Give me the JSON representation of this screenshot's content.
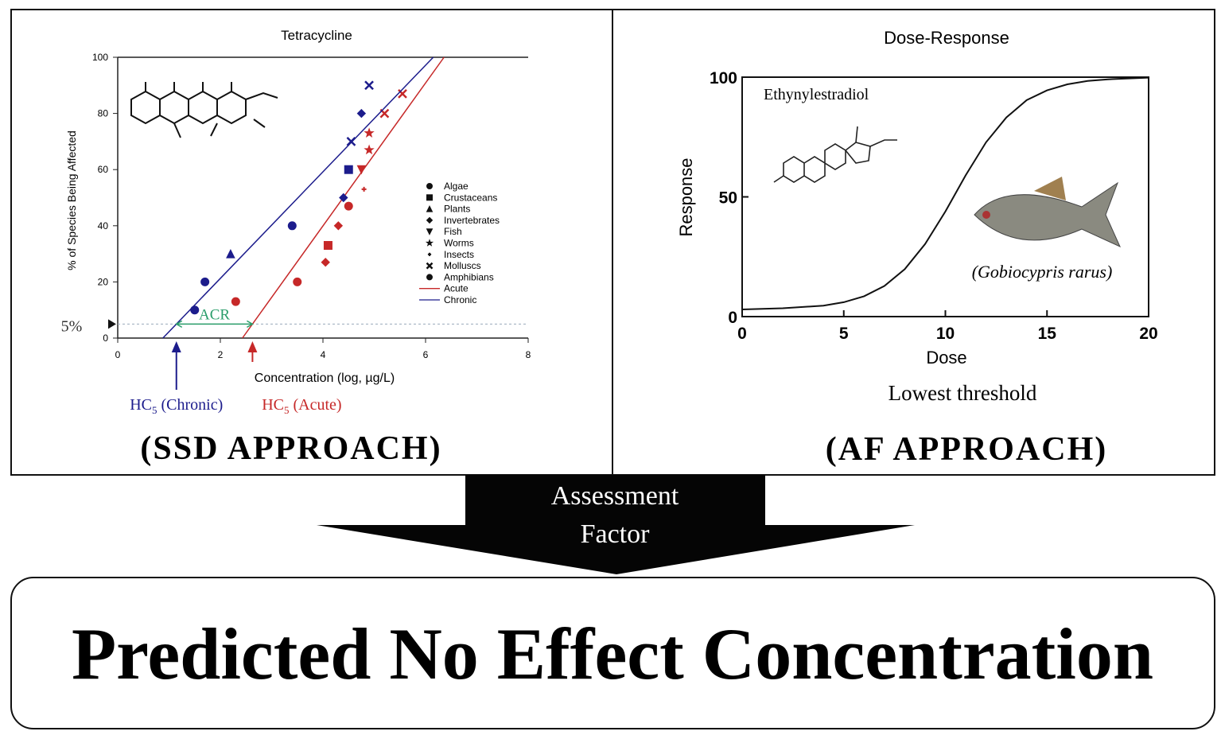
{
  "ssd": {
    "title": "Tetracycline",
    "y_label": "% of Species Being Affected",
    "x_label": "Concentration (log, µg/L)",
    "xlim": [
      0,
      8
    ],
    "xticks": [
      0,
      2,
      4,
      6,
      8
    ],
    "ylim": [
      0,
      100
    ],
    "yticks": [
      0,
      20,
      40,
      60,
      80,
      100
    ],
    "threshold": {
      "label": "5%",
      "value": 5
    },
    "acr_label": "ACR",
    "legend": [
      {
        "name": "Algae",
        "marker": "circle"
      },
      {
        "name": "Crustaceans",
        "marker": "square"
      },
      {
        "name": "Plants",
        "marker": "triangle"
      },
      {
        "name": "Invertebrates",
        "marker": "diamond"
      },
      {
        "name": "Fish",
        "marker": "triangle-down"
      },
      {
        "name": "Worms",
        "marker": "star"
      },
      {
        "name": "Insects",
        "marker": "plus"
      },
      {
        "name": "Molluscs",
        "marker": "x"
      },
      {
        "name": "Amphibians",
        "marker": "circle"
      }
    ],
    "series": [
      {
        "name": "Acute",
        "color": "#c62828",
        "x": [
          2.3,
          3.5,
          4.05,
          4.1,
          4.3,
          4.5,
          4.8,
          4.75,
          4.9,
          4.9,
          5.2,
          5.55
        ],
        "y": [
          13,
          20,
          27,
          33,
          40,
          47,
          53,
          60,
          67,
          73,
          80,
          87
        ],
        "markers": [
          "circle",
          "circle",
          "diamond",
          "square",
          "diamond",
          "circle",
          "plus",
          "triangle-down",
          "star",
          "star",
          "x",
          "x"
        ],
        "line_x": [
          2.43,
          6.36
        ],
        "line_y": [
          0,
          100
        ],
        "hc5": {
          "base": "HC",
          "sub": "5",
          "text": " (Acute)"
        }
      },
      {
        "name": "Chronic",
        "color": "#1c1c8c",
        "x": [
          1.5,
          1.7,
          2.2,
          3.4,
          4.4,
          4.5,
          4.55,
          4.75,
          4.9
        ],
        "y": [
          10,
          20,
          30,
          40,
          50,
          60,
          70,
          80,
          90
        ],
        "markers": [
          "circle",
          "circle",
          "triangle",
          "circle",
          "diamond",
          "square",
          "x",
          "diamond",
          "x"
        ],
        "line_x": [
          0.88,
          6.15
        ],
        "line_y": [
          0,
          100
        ],
        "hc5": {
          "base": "HC",
          "sub": "5",
          "text": " (Chronic)"
        }
      }
    ],
    "approach": "(SSD APPROACH)"
  },
  "dose_response": {
    "title": "Dose-Response",
    "y_label": "Response",
    "x_label": "Dose",
    "xlim": [
      0,
      20
    ],
    "xticks": [
      0,
      5,
      10,
      15,
      20
    ],
    "ylim": [
      0,
      100
    ],
    "yticks": [
      0,
      50,
      100
    ],
    "x": [
      0,
      2,
      4,
      5,
      6,
      7,
      8,
      9,
      10,
      11,
      12,
      13,
      14,
      15,
      16,
      17,
      18,
      20
    ],
    "y": [
      3,
      3.5,
      4.6,
      6,
      8.5,
      12.8,
      19.8,
      30.3,
      43.9,
      59,
      72.8,
      83.2,
      90.4,
      94.5,
      97,
      98.4,
      99.1,
      99.8
    ],
    "compound": "Ethynylestradiol",
    "species": "(Gobiocypris rarus)",
    "note": "Lowest threshold",
    "approach": "(AF APPROACH)"
  },
  "arrow_text": [
    "Assessment",
    "Factor"
  ],
  "conclusion": "Predicted No Effect Concentration"
}
